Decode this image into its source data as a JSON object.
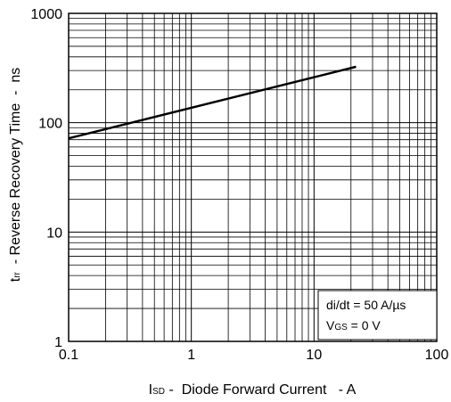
{
  "chart_data": {
    "type": "line",
    "x_scale": "log",
    "y_scale": "log",
    "xlim": [
      0.1,
      100
    ],
    "ylim": [
      1,
      1000
    ],
    "x_tick_labels": [
      "0.1",
      "1",
      "10",
      "100"
    ],
    "y_tick_labels": [
      "1",
      "10",
      "100",
      "1000"
    ],
    "grid": true,
    "xlabel": {
      "symbol": "I",
      "subscript": "SD",
      "text": " -  Diode Forward Current   - A"
    },
    "ylabel": {
      "symbol": "t",
      "subscript": "rr",
      "text": "  - Reverse Recovery Time  -  ns"
    },
    "series": [
      {
        "x": [
          0.1,
          22
        ],
        "y": [
          72,
          325
        ]
      }
    ],
    "annotation": {
      "line1": "di/dt = 50 A/µs",
      "line2_symbol": "V",
      "line2_subscript": "GS",
      "line2_text": " = 0 V",
      "placement": "bottom-right"
    }
  }
}
